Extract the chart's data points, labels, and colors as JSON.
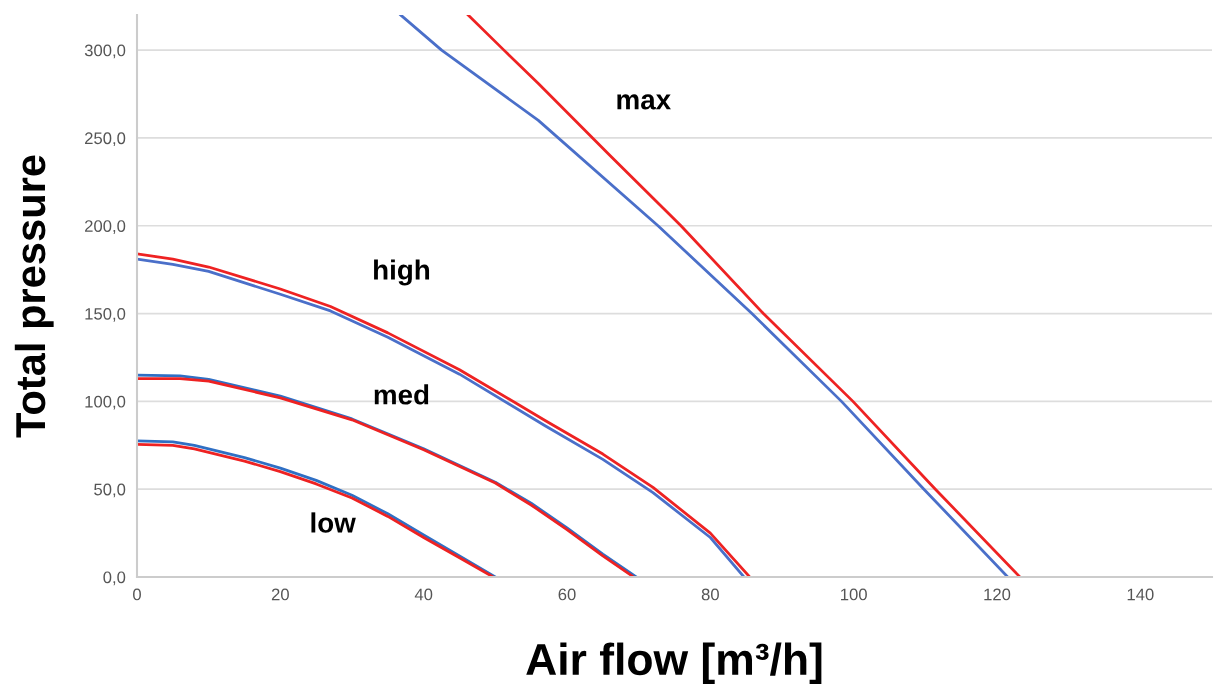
{
  "chart_data": {
    "type": "line",
    "xlabel": "Air flow [m³/h]",
    "ylabel": "Total pressure",
    "xlim": [
      0,
      150
    ],
    "ylim": [
      0,
      320
    ],
    "xticks": [
      0,
      20,
      40,
      60,
      80,
      100,
      120,
      140
    ],
    "yticks": [
      {
        "value": 0,
        "label": "0,0"
      },
      {
        "value": 50,
        "label": "50,0"
      },
      {
        "value": 100,
        "label": "100,0"
      },
      {
        "value": 150,
        "label": "150,0"
      },
      {
        "value": 200,
        "label": "200,0"
      },
      {
        "value": 250,
        "label": "250,0"
      },
      {
        "value": 300,
        "label": "300,0"
      }
    ],
    "grid": "y",
    "marker": "none",
    "line_style": "solid",
    "series": [
      {
        "color": "#2f6fc4",
        "x": [
          0,
          5,
          8,
          15,
          20,
          25,
          30,
          35,
          40,
          45,
          50
        ],
        "values": [
          77.5,
          77,
          75,
          68,
          62,
          55,
          46.5,
          36,
          24,
          12,
          0
        ]
      },
      {
        "color": "#ee2222",
        "x": [
          0,
          5,
          8,
          15,
          20,
          25,
          30,
          35,
          40,
          45,
          49.7
        ],
        "values": [
          75.5,
          75,
          73,
          66,
          60,
          53,
          45,
          34.5,
          22.5,
          11,
          0
        ]
      },
      {
        "color": "#2f6fc4",
        "x": [
          0,
          6,
          10,
          20,
          30,
          40,
          50,
          55,
          60,
          65,
          69.7
        ],
        "values": [
          115,
          114.5,
          112.5,
          103,
          90,
          73,
          54,
          42,
          28,
          13,
          0
        ]
      },
      {
        "color": "#ee2222",
        "x": [
          0,
          6,
          10,
          20,
          30,
          40,
          50,
          55,
          60,
          65,
          69.3
        ],
        "values": [
          113,
          113,
          111.5,
          102,
          89.5,
          72.5,
          53.5,
          41,
          27,
          12,
          0
        ]
      },
      {
        "color": "#4a6fc9",
        "x": [
          0,
          5,
          10,
          20,
          27,
          35,
          45,
          57,
          65,
          72,
          80,
          84.7
        ],
        "values": [
          181,
          178,
          174,
          161,
          151.5,
          136.5,
          115.5,
          86,
          67,
          48,
          22.5,
          0
        ]
      },
      {
        "color": "#ee2222",
        "x": [
          0,
          5,
          10,
          20,
          27,
          35,
          45,
          57,
          65,
          72,
          80,
          85.5
        ],
        "values": [
          184,
          181,
          176.5,
          164,
          154,
          139,
          118,
          89,
          70,
          51,
          25,
          0
        ]
      },
      {
        "color": "#4a6fc9",
        "x": [
          36.8,
          42.5,
          56,
          72.7,
          85.8,
          98.3,
          109.8,
          121.5
        ],
        "values": [
          320,
          300,
          260,
          200,
          150,
          100,
          50,
          0
        ]
      },
      {
        "color": "#ee2222",
        "x": [
          46.2,
          51.2,
          56,
          66,
          75.9,
          87.4,
          99.9,
          111.4,
          123.2
        ],
        "values": [
          320,
          300,
          281,
          240,
          200,
          150,
          100,
          50,
          0
        ]
      }
    ],
    "annotations": [
      "max",
      "high",
      "med",
      "low"
    ]
  }
}
